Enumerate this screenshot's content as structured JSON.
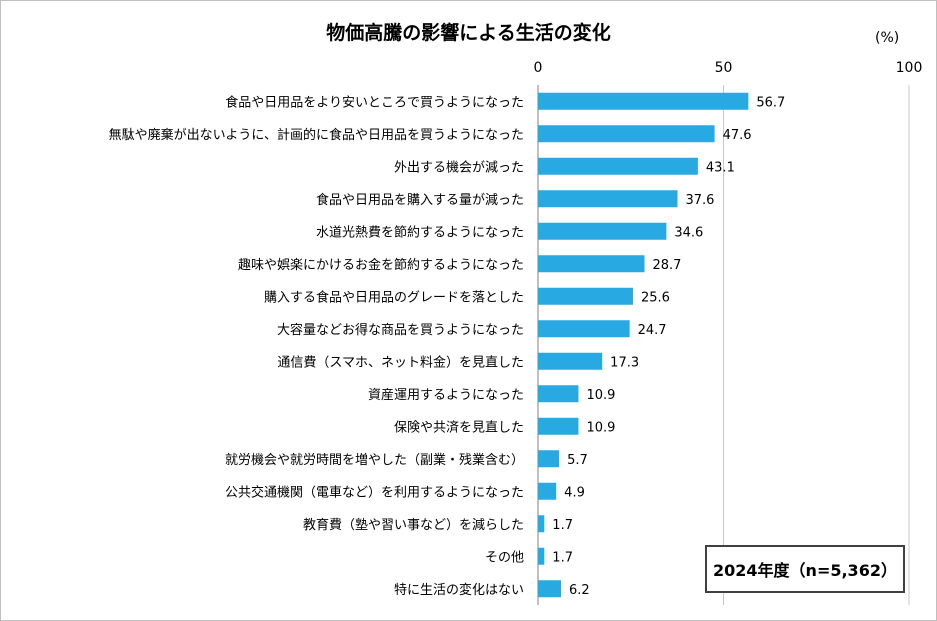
{
  "chart_data": {
    "type": "bar",
    "orientation": "horizontal",
    "title": "物価高騰の影響による生活の変化",
    "unit": "(%)",
    "xlim": [
      0,
      100
    ],
    "xticks": [
      "0",
      "50",
      "100"
    ],
    "grid": true,
    "bar_color": "#29A9E1",
    "categories": [
      "食品や日用品をより安いところで買うようになった",
      "無駄や廃棄が出ないように、計画的に食品や日用品を買うようになった",
      "外出する機会が減った",
      "食品や日用品を購入する量が減った",
      "水道光熱費を節約するようになった",
      "趣味や娯楽にかけるお金を節約するようになった",
      "購入する食品や日用品のグレードを落とした",
      "大容量などお得な商品を買うようになった",
      "通信費（スマホ、ネット料金）を見直した",
      "資産運用するようになった",
      "保険や共済を見直した",
      "就労機会や就労時間を増やした（副業・残業含む）",
      "公共交通機関（電車など）を利用するようになった",
      "教育費（塾や習い事など）を減らした",
      "その他",
      "特に生活の変化はない"
    ],
    "values": [
      56.7,
      47.6,
      43.1,
      37.6,
      34.6,
      28.7,
      25.6,
      24.7,
      17.3,
      10.9,
      10.9,
      5.7,
      4.9,
      1.7,
      1.7,
      6.2
    ],
    "value_labels": [
      "56.7",
      "47.6",
      "43.1",
      "37.6",
      "34.6",
      "28.7",
      "25.6",
      "24.7",
      "17.3",
      "10.9",
      "10.9",
      "5.7",
      "4.9",
      "1.7",
      "1.7",
      "6.2"
    ],
    "sample_note": "2024年度（n=5,362）"
  }
}
